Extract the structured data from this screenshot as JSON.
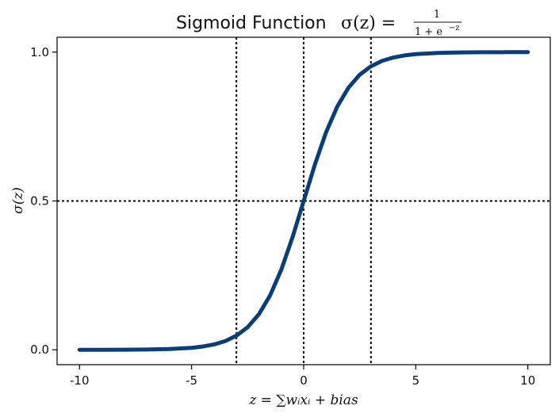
{
  "chart_data": {
    "type": "line",
    "title": "Sigmoid Function",
    "title_formula": {
      "lhs": "σ(z) =",
      "numerator": "1",
      "denominator": "1 + e",
      "exponent": "−z"
    },
    "xlabel": "z = ∑wᵢxᵢ + bias",
    "ylabel": "σ(z)",
    "xlim": [
      -11,
      11
    ],
    "ylim": [
      -0.05,
      1.05
    ],
    "x_ticks": [
      -10,
      -5,
      0,
      5,
      10
    ],
    "x_tick_labels": [
      "-10",
      "-5",
      "0",
      "5",
      "10"
    ],
    "y_ticks": [
      0.0,
      0.5,
      1.0
    ],
    "y_tick_labels": [
      "0.0",
      "0.5",
      "1.0"
    ],
    "series": [
      {
        "color": "#0b3d7a",
        "x": [
          -10,
          -9,
          -8,
          -7,
          -6,
          -5,
          -4.5,
          -4,
          -3.5,
          -3,
          -2.5,
          -2,
          -1.5,
          -1,
          -0.5,
          0,
          0.5,
          1,
          1.5,
          2,
          2.5,
          3,
          3.5,
          4,
          4.5,
          5,
          6,
          7,
          8,
          9,
          10
        ],
        "y": [
          0.0,
          0.0001,
          0.0003,
          0.0009,
          0.0025,
          0.0067,
          0.011,
          0.018,
          0.0293,
          0.0474,
          0.0759,
          0.1192,
          0.1824,
          0.2689,
          0.3775,
          0.5,
          0.6225,
          0.7311,
          0.8176,
          0.8808,
          0.9241,
          0.9526,
          0.9707,
          0.982,
          0.989,
          0.9933,
          0.9975,
          0.9991,
          0.9997,
          0.9999,
          1.0
        ]
      }
    ],
    "reference_lines": {
      "vertical_x": [
        -3,
        0,
        3
      ],
      "horizontal_y": [
        0.5
      ],
      "style": "dotted",
      "color": "#000000"
    },
    "grid": false,
    "legend": "none"
  }
}
